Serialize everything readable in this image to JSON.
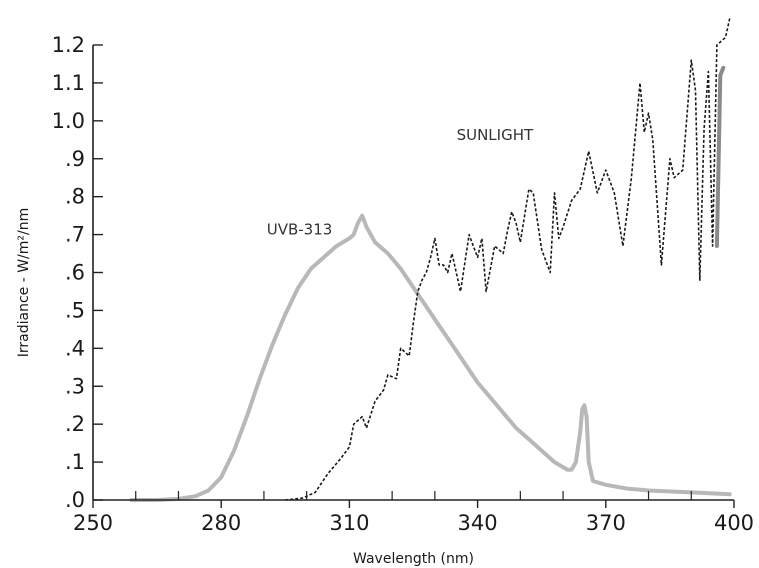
{
  "chart_data": {
    "type": "line",
    "title": "",
    "xlabel": "Wavelength (nm)",
    "ylabel": "Irradiance - W/m²/nm",
    "xlim": [
      250,
      400
    ],
    "ylim": [
      0,
      1.2
    ],
    "x_ticks": [
      250,
      280,
      310,
      340,
      370,
      400
    ],
    "x_tick_labels": [
      "250",
      "280",
      "310",
      "340",
      "370",
      "400"
    ],
    "x_minor_ticks": [
      260,
      270,
      290,
      300,
      320,
      330,
      350,
      360,
      380,
      390
    ],
    "y_ticks": [
      0,
      0.1,
      0.2,
      0.3,
      0.4,
      0.5,
      0.6,
      0.7,
      0.8,
      0.9,
      1.0,
      1.1,
      1.2
    ],
    "y_tick_labels": [
      ".0",
      ".1",
      ".2",
      ".3",
      ".4",
      ".5",
      ".6",
      ".7",
      ".8",
      ".9",
      "1.0",
      "1.1",
      "1.2"
    ],
    "grid": false,
    "legend": "none",
    "series": [
      {
        "name": "UVB-313",
        "label_at": [
          306,
          0.7
        ],
        "style": "solid",
        "color": "#b8b8b8",
        "points": [
          [
            259,
            0.0
          ],
          [
            265,
            0.0
          ],
          [
            270,
            0.003
          ],
          [
            274,
            0.01
          ],
          [
            277,
            0.025
          ],
          [
            280,
            0.06
          ],
          [
            283,
            0.13
          ],
          [
            286,
            0.22
          ],
          [
            289,
            0.32
          ],
          [
            292,
            0.41
          ],
          [
            295,
            0.49
          ],
          [
            298,
            0.56
          ],
          [
            301,
            0.61
          ],
          [
            304,
            0.64
          ],
          [
            307,
            0.67
          ],
          [
            310,
            0.69
          ],
          [
            311,
            0.7
          ],
          [
            312,
            0.73
          ],
          [
            313,
            0.75
          ],
          [
            314,
            0.72
          ],
          [
            316,
            0.68
          ],
          [
            319,
            0.65
          ],
          [
            322,
            0.61
          ],
          [
            325,
            0.56
          ],
          [
            328,
            0.51
          ],
          [
            331,
            0.46
          ],
          [
            334,
            0.41
          ],
          [
            337,
            0.36
          ],
          [
            340,
            0.31
          ],
          [
            343,
            0.27
          ],
          [
            346,
            0.23
          ],
          [
            349,
            0.19
          ],
          [
            352,
            0.16
          ],
          [
            355,
            0.13
          ],
          [
            358,
            0.1
          ],
          [
            361,
            0.08
          ],
          [
            362,
            0.08
          ],
          [
            363,
            0.1
          ],
          [
            364,
            0.18
          ],
          [
            364.5,
            0.24
          ],
          [
            365,
            0.25
          ],
          [
            365.5,
            0.22
          ],
          [
            366,
            0.1
          ],
          [
            367,
            0.05
          ],
          [
            370,
            0.04
          ],
          [
            375,
            0.03
          ],
          [
            380,
            0.025
          ],
          [
            390,
            0.02
          ],
          [
            399,
            0.015
          ]
        ]
      },
      {
        "name": "SUNLIGHT",
        "label_at": [
          353,
          0.95
        ],
        "style": "dashed",
        "color": "#1a1a1a",
        "points": [
          [
            295,
            0.0
          ],
          [
            299,
            0.005
          ],
          [
            302,
            0.02
          ],
          [
            305,
            0.07
          ],
          [
            308,
            0.11
          ],
          [
            310,
            0.14
          ],
          [
            311,
            0.2
          ],
          [
            313,
            0.22
          ],
          [
            314,
            0.19
          ],
          [
            316,
            0.26
          ],
          [
            318,
            0.29
          ],
          [
            319,
            0.33
          ],
          [
            321,
            0.32
          ],
          [
            322,
            0.4
          ],
          [
            324,
            0.38
          ],
          [
            325,
            0.47
          ],
          [
            326,
            0.55
          ],
          [
            327,
            0.58
          ],
          [
            328,
            0.6
          ],
          [
            329,
            0.64
          ],
          [
            330,
            0.69
          ],
          [
            331,
            0.62
          ],
          [
            332,
            0.62
          ],
          [
            333,
            0.6
          ],
          [
            334,
            0.65
          ],
          [
            336,
            0.55
          ],
          [
            338,
            0.7
          ],
          [
            339,
            0.67
          ],
          [
            340,
            0.64
          ],
          [
            341,
            0.69
          ],
          [
            342,
            0.55
          ],
          [
            344,
            0.67
          ],
          [
            346,
            0.65
          ],
          [
            347,
            0.71
          ],
          [
            348,
            0.76
          ],
          [
            349,
            0.73
          ],
          [
            350,
            0.68
          ],
          [
            352,
            0.82
          ],
          [
            353,
            0.81
          ],
          [
            355,
            0.66
          ],
          [
            357,
            0.6
          ],
          [
            358,
            0.81
          ],
          [
            359,
            0.69
          ],
          [
            360,
            0.72
          ],
          [
            362,
            0.79
          ],
          [
            364,
            0.82
          ],
          [
            366,
            0.92
          ],
          [
            368,
            0.81
          ],
          [
            370,
            0.87
          ],
          [
            372,
            0.81
          ],
          [
            374,
            0.67
          ],
          [
            376,
            0.85
          ],
          [
            378,
            1.1
          ],
          [
            379,
            0.97
          ],
          [
            380,
            1.02
          ],
          [
            381,
            0.95
          ],
          [
            383,
            0.62
          ],
          [
            385,
            0.9
          ],
          [
            386,
            0.85
          ],
          [
            388,
            0.87
          ],
          [
            390,
            1.16
          ],
          [
            391,
            1.08
          ],
          [
            392,
            0.58
          ],
          [
            393,
            0.98
          ],
          [
            394,
            1.13
          ],
          [
            395,
            0.67
          ],
          [
            396,
            1.2
          ],
          [
            398,
            1.22
          ],
          [
            399,
            1.27
          ]
        ]
      },
      {
        "name": "",
        "style": "solid",
        "color": "#8a8a8a",
        "points": [
          [
            396,
            0.67
          ],
          [
            396.8,
            1.12
          ],
          [
            397.5,
            1.14
          ]
        ]
      }
    ]
  }
}
